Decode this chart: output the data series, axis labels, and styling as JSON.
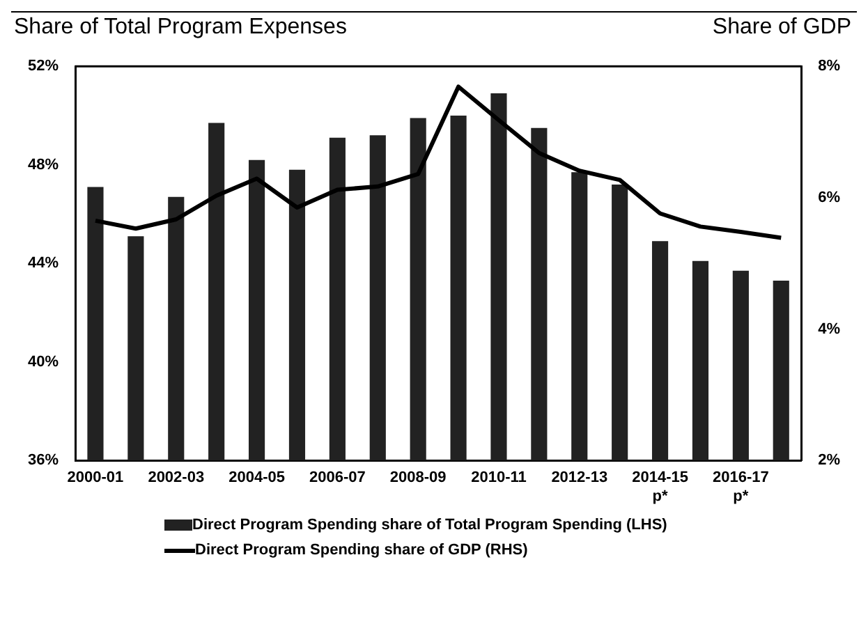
{
  "chart_data": {
    "type": "bar",
    "ylabel": "Share of Total Program Expenses",
    "y2label": "Share of GDP",
    "categories": [
      "2000-01",
      null,
      "2002-03",
      null,
      "2004-05",
      null,
      "2006-07",
      null,
      "2008-09",
      null,
      "2010-11",
      null,
      "2012-13",
      null,
      "2014-15 p*",
      null,
      "2016-17 p*",
      null
    ],
    "series": [
      {
        "name": "Direct Program Spending share of Total Program Spending (LHS)",
        "color": "#222222",
        "values": [
          47.1,
          45.1,
          46.7,
          49.7,
          48.2,
          47.8,
          49.1,
          49.2,
          49.9,
          50.0,
          50.9,
          49.5,
          47.7,
          47.2,
          44.9,
          44.1,
          43.7,
          43.3
        ]
      },
      {
        "name": "Direct Program Spending share of GDP (RHS)",
        "type": "line",
        "axis": "y2",
        "color": "#000000",
        "values": [
          5.65,
          5.53,
          5.67,
          6.03,
          6.29,
          5.85,
          6.12,
          6.17,
          6.36,
          7.69,
          7.18,
          6.68,
          6.41,
          6.27,
          5.76,
          5.56,
          5.48,
          5.39
        ]
      }
    ],
    "ylim": [
      36,
      52
    ],
    "yticks": [
      {
        "value": 36,
        "label": "36%"
      },
      {
        "value": 40,
        "label": "40%"
      },
      {
        "value": 44,
        "label": "44%"
      },
      {
        "value": 48,
        "label": "48%"
      },
      {
        "value": 52,
        "label": "52%"
      }
    ],
    "y2lim": [
      2,
      8
    ],
    "y2ticks": [
      {
        "value": 2,
        "label": "2%"
      },
      {
        "value": 4,
        "label": "4%"
      },
      {
        "value": 6,
        "label": "6%"
      },
      {
        "value": 8,
        "label": "8%"
      }
    ],
    "grid": false,
    "legend": "bottom"
  }
}
